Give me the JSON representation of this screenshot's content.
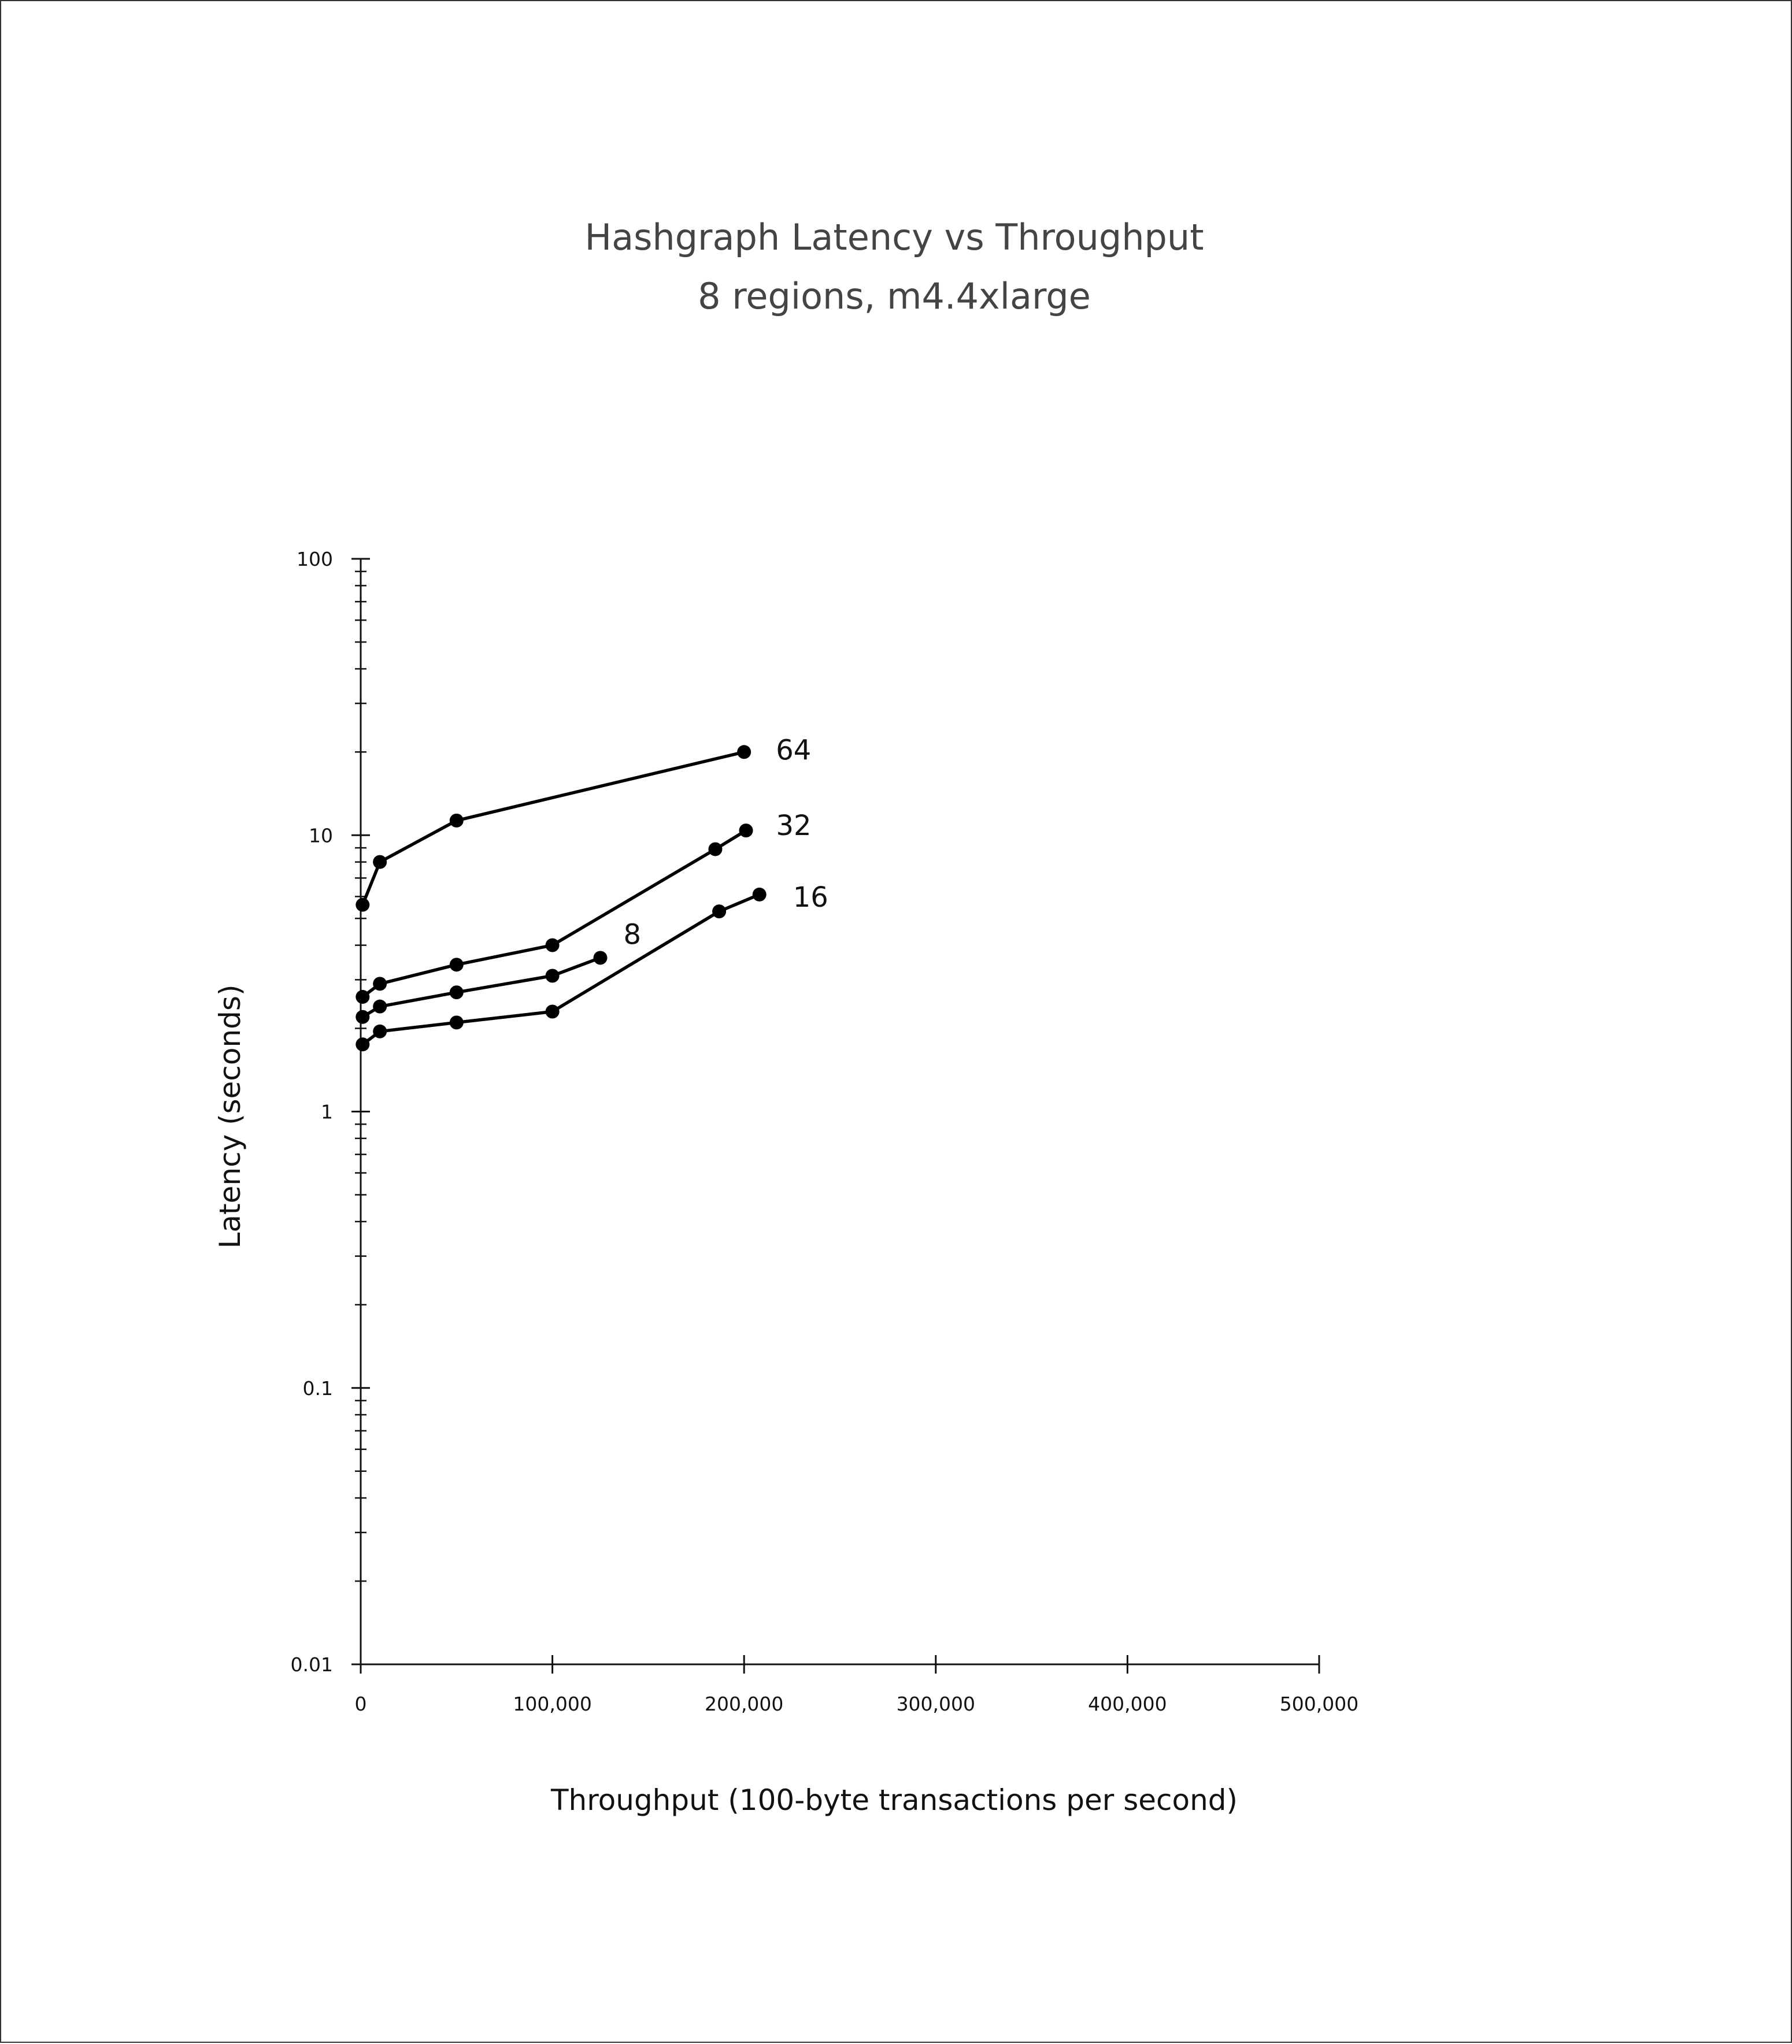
{
  "chart_data": {
    "type": "line",
    "title": "Hashgraph Latency vs Throughput",
    "subtitle": "8 regions, m4.4xlarge",
    "xlabel": "Throughput (100-byte transactions per second)",
    "ylabel": "Latency (seconds)",
    "xlim": [
      0,
      500000
    ],
    "ylim": [
      0.01,
      100
    ],
    "yscale": "log",
    "xticks": [
      0,
      100000,
      200000,
      300000,
      400000,
      500000
    ],
    "xtick_labels": [
      "0",
      "100,000",
      "200,000",
      "300,000",
      "400,000",
      "500,000"
    ],
    "yticks": [
      0.01,
      0.1,
      1,
      10,
      100
    ],
    "ytick_labels": [
      "0.01",
      "0.1",
      "1",
      "10",
      "100"
    ],
    "grid": false,
    "legend": "inline labels at line ends",
    "series": [
      {
        "name": "64",
        "x": [
          1000,
          10000,
          50000,
          200000
        ],
        "y": [
          5.6,
          8.0,
          11.3,
          20.0
        ]
      },
      {
        "name": "32",
        "x": [
          1000,
          10000,
          50000,
          100000,
          185000,
          201000
        ],
        "y": [
          2.6,
          2.9,
          3.4,
          4.0,
          8.9,
          10.4
        ]
      },
      {
        "name": "8",
        "x": [
          1000,
          10000,
          50000,
          100000,
          125000
        ],
        "y": [
          2.2,
          2.4,
          2.7,
          3.1,
          3.6
        ]
      },
      {
        "name": "16",
        "x": [
          1000,
          10000,
          50000,
          100000,
          187000,
          208000
        ],
        "y": [
          1.75,
          1.95,
          2.1,
          2.3,
          5.3,
          6.1
        ]
      }
    ]
  }
}
